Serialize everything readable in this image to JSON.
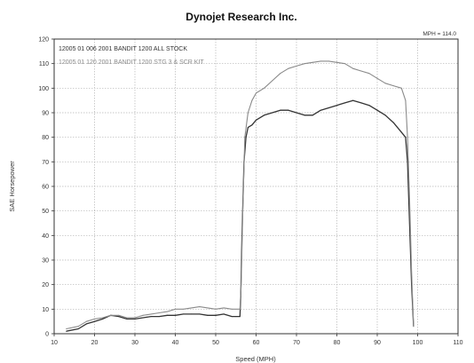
{
  "chart_data": {
    "type": "line",
    "title": "Dynojet Research Inc.",
    "xlabel": "Speed (MPH)",
    "ylabel": "SAE Horsepower",
    "annotation": "MPH = 114.0",
    "xlim": [
      10,
      110
    ],
    "ylim": [
      0,
      120
    ],
    "xticks": [
      10,
      20,
      30,
      40,
      50,
      60,
      70,
      80,
      90,
      100,
      110
    ],
    "yticks": [
      0,
      10,
      20,
      30,
      40,
      50,
      60,
      70,
      80,
      90,
      100,
      110,
      120
    ],
    "grid": true,
    "legend_placement": "top-left",
    "colors": {
      "series1": "#333333",
      "series2": "#8a8a8a",
      "grid": "#b5b5b5",
      "frame": "#333333"
    },
    "series": [
      {
        "name": "12005 01 006   2001 BANDIT 1200 ALL STOCK",
        "x": [
          13,
          16,
          18,
          20,
          22,
          24,
          26,
          28,
          30,
          32,
          34,
          36,
          38,
          40,
          42,
          44,
          46,
          48,
          50,
          52,
          54,
          55,
          56,
          56.2,
          56.5,
          57,
          57.5,
          58,
          59,
          60,
          62,
          64,
          66,
          68,
          70,
          72,
          74,
          76,
          78,
          80,
          82,
          84,
          86,
          88,
          90,
          92,
          94,
          96,
          97,
          97.5,
          98,
          98.5,
          99
        ],
        "y": [
          1,
          2,
          4,
          5,
          6,
          7.5,
          7,
          6,
          6,
          6.5,
          7,
          7,
          7.5,
          7.5,
          8,
          8,
          8,
          7.5,
          7.5,
          8,
          7,
          7,
          7,
          15,
          40,
          70,
          80,
          84,
          85,
          87,
          89,
          90,
          91,
          91,
          90,
          89,
          89,
          91,
          92,
          93,
          94,
          95,
          94,
          93,
          91,
          89,
          86,
          82,
          80,
          70,
          45,
          20,
          3
        ]
      },
      {
        "name": "12005 01 120   2001 BANDIT 1200 STG 3 & SCR KIT",
        "x": [
          13,
          16,
          18,
          20,
          22,
          24,
          26,
          28,
          30,
          32,
          34,
          36,
          38,
          40,
          42,
          44,
          46,
          48,
          50,
          52,
          54,
          56,
          56.3,
          56.7,
          57.2,
          58,
          59,
          60,
          62,
          64,
          66,
          68,
          70,
          72,
          74,
          76,
          78,
          80,
          82,
          84,
          86,
          88,
          90,
          92,
          94,
          96,
          97,
          97.5,
          98,
          98.5,
          99
        ],
        "y": [
          2,
          3,
          5,
          6,
          6.5,
          7.5,
          7.5,
          6.5,
          6.5,
          7.5,
          8,
          8.5,
          9,
          10,
          10,
          10.5,
          11,
          10.5,
          10,
          10.5,
          10,
          10,
          20,
          50,
          80,
          90,
          95,
          98,
          100,
          103,
          106,
          108,
          109,
          110,
          110.5,
          111,
          111,
          110.5,
          110,
          108,
          107,
          106,
          104,
          102,
          101,
          100,
          95,
          80,
          55,
          25,
          3
        ]
      }
    ]
  }
}
